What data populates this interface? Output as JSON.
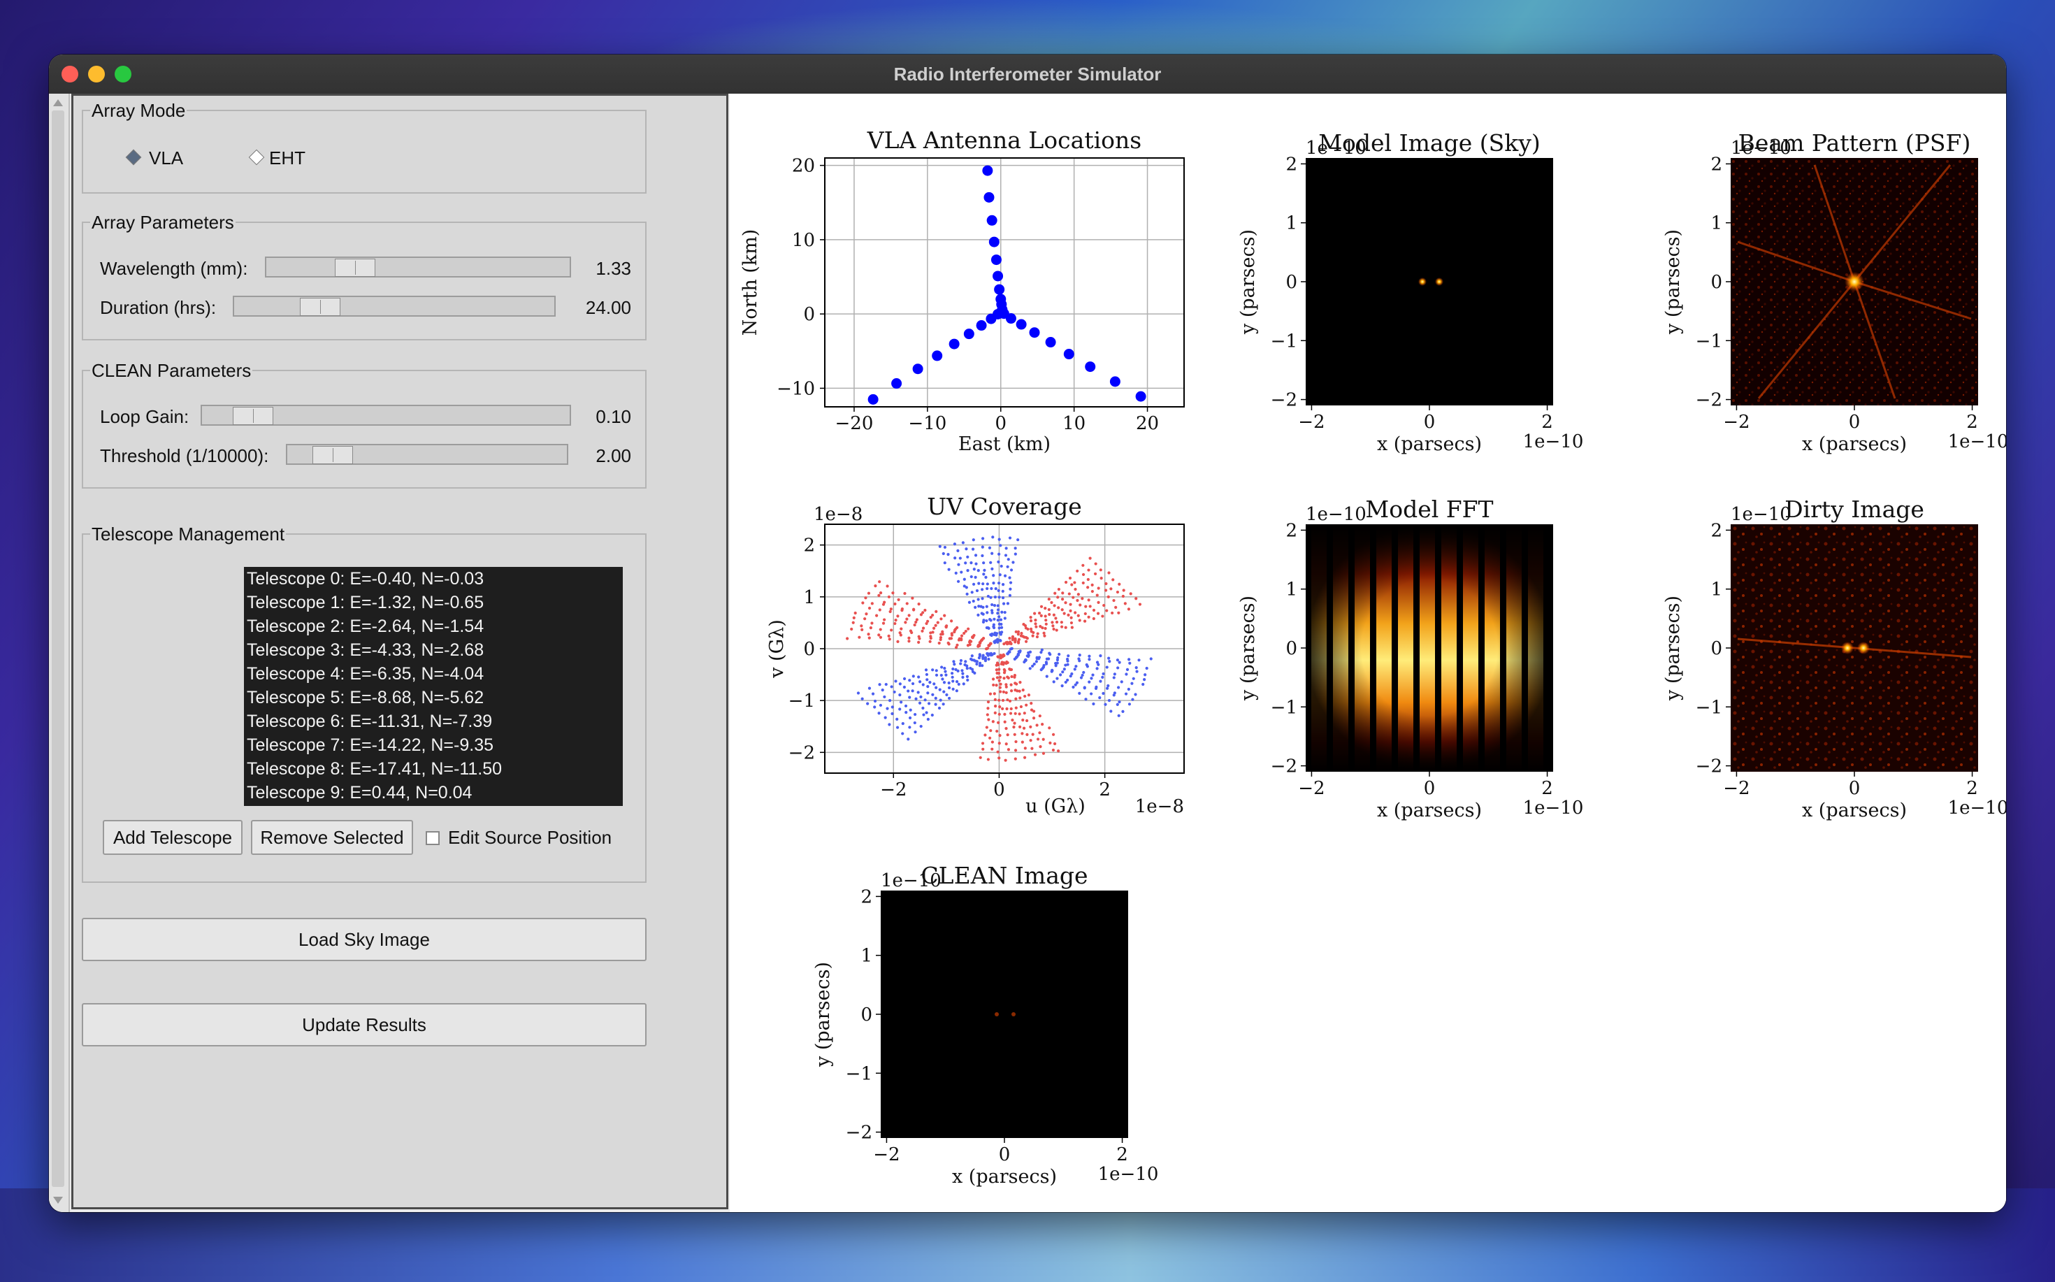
{
  "window": {
    "title": "Radio Interferometer Simulator"
  },
  "array_mode": {
    "label": "Array Mode",
    "options": [
      {
        "label": "VLA",
        "selected": true
      },
      {
        "label": "EHT",
        "selected": false
      }
    ]
  },
  "array_params": {
    "label": "Array Parameters",
    "wavelength": {
      "label": "Wavelength (mm):",
      "value": "1.33",
      "fraction": 0.27
    },
    "duration": {
      "label": "Duration (hrs):",
      "value": "24.00",
      "fraction": 0.24
    }
  },
  "clean_params": {
    "label": "CLEAN Parameters",
    "loop_gain": {
      "label": "Loop Gain:",
      "value": "0.10",
      "fraction": 0.09
    },
    "threshold": {
      "label": "Threshold (1/10000):",
      "value": "2.00",
      "fraction": 0.11
    }
  },
  "telescope_mgmt": {
    "label": "Telescope Management",
    "telescopes": [
      "Telescope 0: E=-0.40, N=-0.03",
      "Telescope 1: E=-1.32, N=-0.65",
      "Telescope 2: E=-2.64, N=-1.54",
      "Telescope 3: E=-4.33, N=-2.68",
      "Telescope 4: E=-6.35, N=-4.04",
      "Telescope 5: E=-8.68, N=-5.62",
      "Telescope 6: E=-11.31, N=-7.39",
      "Telescope 7: E=-14.22, N=-9.35",
      "Telescope 8: E=-17.41, N=-11.50",
      "Telescope 9: E=0.44, N=0.04"
    ],
    "add_button": "Add Telescope",
    "remove_button": "Remove Selected",
    "edit_source_label": "Edit Source Position",
    "edit_source_checked": false
  },
  "load_button": "Load Sky Image",
  "update_button": "Update Results",
  "colors": {
    "vla_dots": "#0000ff",
    "uv_red": "#e8504f",
    "uv_blue": "#4a5ef0",
    "panel_bg": "#d9d9d9"
  },
  "plots": {
    "antenna": {
      "title": "VLA Antenna Locations",
      "xlabel": "East (km)",
      "ylabel": "North (km)",
      "xticks": [
        "−20",
        "−10",
        "0",
        "10",
        "20"
      ],
      "yticks": [
        "20",
        "10",
        "0",
        "−10"
      ]
    },
    "model": {
      "title": "Model Image (Sky)",
      "xlabel": "x (parsecs)",
      "ylabel": "y (parsecs)",
      "exp": "1e−10",
      "xexp": "1e−10",
      "xticks": [
        "−2",
        "0",
        "2"
      ],
      "yticks": [
        "2",
        "1",
        "0",
        "−1",
        "−2"
      ]
    },
    "beam": {
      "title": "Beam Pattern (PSF)",
      "xlabel": "x (parsecs)",
      "ylabel": "y (parsecs)",
      "exp": "1e−10",
      "xexp": "1e−10",
      "xticks": [
        "−2",
        "0",
        "2"
      ],
      "yticks": [
        "2",
        "1",
        "0",
        "−1",
        "−2"
      ]
    },
    "uv": {
      "title": "UV Coverage",
      "xlabel": "u (Gλ)",
      "ylabel": "v (Gλ)",
      "exp": "1e−8",
      "xexp": "1e−8",
      "xticks": [
        "−2",
        "0",
        "2"
      ],
      "yticks": [
        "2",
        "1",
        "0",
        "−1",
        "−2"
      ]
    },
    "fft": {
      "title": "Model FFT",
      "xlabel": "x (parsecs)",
      "ylabel": "y (parsecs)",
      "exp": "1e−10",
      "xexp": "1e−10",
      "xticks": [
        "−2",
        "0",
        "2"
      ],
      "yticks": [
        "2",
        "1",
        "0",
        "−1",
        "−2"
      ]
    },
    "dirty": {
      "title": "Dirty Image",
      "xlabel": "x (parsecs)",
      "ylabel": "y (parsecs)",
      "exp": "1e−10",
      "xexp": "1e−10",
      "xticks": [
        "−2",
        "0",
        "2"
      ],
      "yticks": [
        "2",
        "1",
        "0",
        "−1",
        "−2"
      ]
    },
    "clean": {
      "title": "CLEAN Image",
      "xlabel": "x (parsecs)",
      "ylabel": "y (parsecs)",
      "exp": "1e−10",
      "xexp": "1e−10",
      "xticks": [
        "−2",
        "0",
        "2"
      ],
      "yticks": [
        "2",
        "1",
        "0",
        "−1",
        "−2"
      ]
    }
  },
  "chart_data": [
    {
      "type": "scatter",
      "title": "VLA Antenna Locations",
      "xlabel": "East (km)",
      "ylabel": "North (km)",
      "xlim": [
        -24,
        25
      ],
      "ylim": [
        -12.5,
        21
      ],
      "grid": true,
      "points": [
        [
          -1.8,
          19.3
        ],
        [
          -1.6,
          15.7
        ],
        [
          -1.2,
          12.6
        ],
        [
          -0.9,
          9.7
        ],
        [
          -0.6,
          7.3
        ],
        [
          -0.4,
          5.1
        ],
        [
          -0.2,
          3.3
        ],
        [
          0,
          2
        ],
        [
          0.1,
          1.3
        ],
        [
          0.2,
          0.6
        ],
        [
          -0.4,
          -0.03
        ],
        [
          -1.32,
          -0.65
        ],
        [
          -2.64,
          -1.54
        ],
        [
          -4.33,
          -2.68
        ],
        [
          -6.35,
          -4.04
        ],
        [
          -8.68,
          -5.62
        ],
        [
          -11.31,
          -7.39
        ],
        [
          -14.22,
          -9.35
        ],
        [
          -17.41,
          -11.5
        ],
        [
          0.44,
          0.04
        ],
        [
          1.4,
          -0.6
        ],
        [
          2.8,
          -1.4
        ],
        [
          4.6,
          -2.5
        ],
        [
          6.8,
          -3.8
        ],
        [
          9.3,
          -5.4
        ],
        [
          12.2,
          -7.1
        ],
        [
          15.6,
          -9.1
        ],
        [
          19.1,
          -11.1
        ]
      ]
    },
    {
      "type": "scatter",
      "title": "UV Coverage",
      "xlabel": "u (Gλ)",
      "ylabel": "v (Gλ)",
      "xlim": [
        -3.3,
        3.5
      ],
      "ylim": [
        -2.4,
        2.4
      ],
      "units_exponent": "1e-8",
      "grid": true,
      "series": [
        {
          "color": "#e8504f"
        },
        {
          "color": "#4a5ef0"
        }
      ]
    }
  ]
}
